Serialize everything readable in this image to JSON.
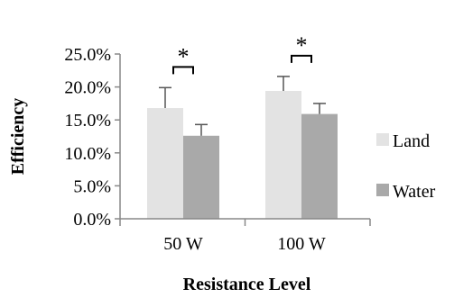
{
  "chart_data": {
    "type": "bar",
    "title": "",
    "xlabel": "Resistance Level",
    "ylabel": "Efficiency",
    "categories": [
      "50 W",
      "100 W"
    ],
    "ylim": [
      0,
      0.25
    ],
    "yticks": [
      "0.0%",
      "5.0%",
      "10.0%",
      "15.0%",
      "20.0%",
      "25.0%"
    ],
    "grid": false,
    "legend_position": "right",
    "series": [
      {
        "name": "Land",
        "values": [
          0.168,
          0.194
        ],
        "errors": [
          0.031,
          0.022
        ],
        "color": "#e3e3e3"
      },
      {
        "name": "Water",
        "values": [
          0.126,
          0.159
        ],
        "errors": [
          0.017,
          0.016
        ],
        "color": "#a9a9a9"
      }
    ],
    "annotations": [
      {
        "category": "50 W",
        "text": "*"
      },
      {
        "category": "100 W",
        "text": "*"
      }
    ]
  }
}
